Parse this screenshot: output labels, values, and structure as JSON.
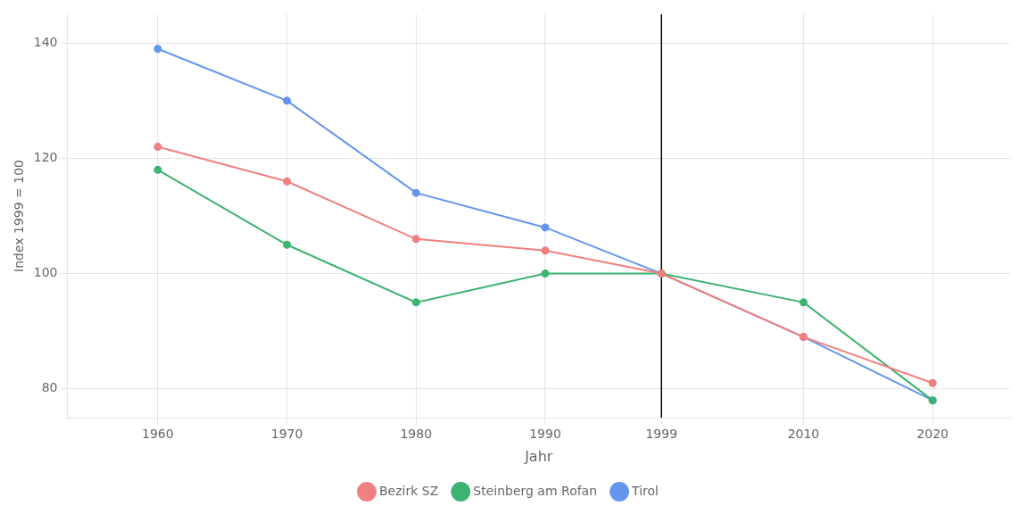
{
  "chart_data": {
    "type": "line",
    "x_label": "Jahr",
    "y_label": "Index 1999 = 100",
    "x": [
      1960,
      1970,
      1980,
      1990,
      1999,
      2010,
      2020
    ],
    "series": [
      {
        "name": "Bezirk SZ",
        "color": "#F08080",
        "values": [
          122,
          116,
          106,
          104,
          100,
          89,
          81
        ]
      },
      {
        "name": "Steinberg am Rofan",
        "color": "#3CB371",
        "values": [
          118,
          105,
          95,
          100,
          100,
          95,
          78
        ]
      },
      {
        "name": "Tirol",
        "color": "#6495ED",
        "values": [
          139,
          130,
          114,
          108,
          100,
          89,
          78
        ]
      }
    ],
    "vline": 1999,
    "xlim": [
      1953,
      2026
    ],
    "xticks": [
      1960,
      1970,
      1980,
      1990,
      1999,
      2010,
      2020
    ],
    "ylim": [
      75,
      145
    ],
    "yticks": [
      80,
      100,
      120,
      140
    ],
    "marker": "circle",
    "grid": true,
    "legend": "bottom"
  }
}
